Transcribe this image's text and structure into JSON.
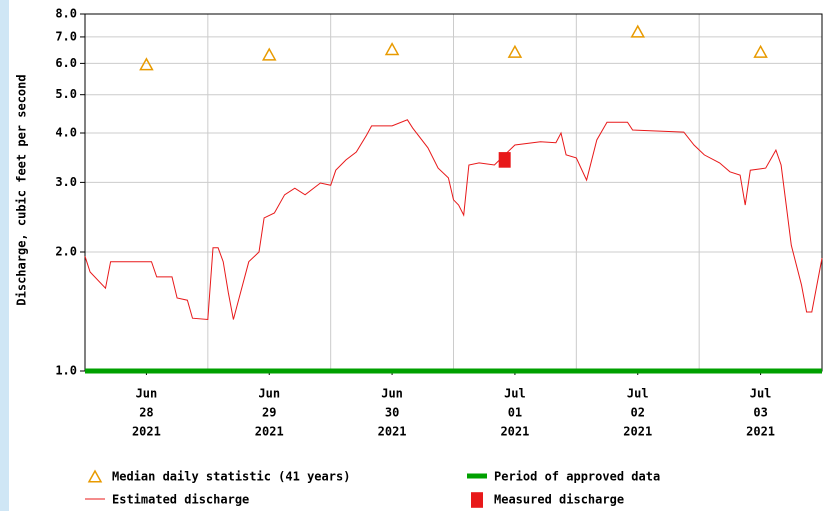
{
  "chart_data": {
    "type": "line",
    "ylabel": "Discharge, cubic feet per second",
    "log_y": true,
    "grid": true,
    "ylim": [
      1,
      8
    ],
    "yticks": [
      {
        "value": 1,
        "label": "1.0"
      },
      {
        "value": 2,
        "label": "2.0"
      },
      {
        "value": 3,
        "label": "3.0"
      },
      {
        "value": 4,
        "label": "4.0"
      },
      {
        "value": 5,
        "label": "5.0"
      },
      {
        "value": 6,
        "label": "6.0"
      },
      {
        "value": 7,
        "label": "7.0"
      },
      {
        "value": 8,
        "label": "8.0"
      }
    ],
    "xlim": [
      "2021-06-28T00:00",
      "2021-07-04T00:00"
    ],
    "xticks": [
      {
        "value": "2021-06-28T12:00",
        "label": [
          "Jun",
          "28",
          "2021"
        ]
      },
      {
        "value": "2021-06-29T12:00",
        "label": [
          "Jun",
          "29",
          "2021"
        ]
      },
      {
        "value": "2021-06-30T12:00",
        "label": [
          "Jun",
          "30",
          "2021"
        ]
      },
      {
        "value": "2021-07-01T12:00",
        "label": [
          "Jul",
          "01",
          "2021"
        ]
      },
      {
        "value": "2021-07-02T12:00",
        "label": [
          "Jul",
          "02",
          "2021"
        ]
      },
      {
        "value": "2021-07-03T12:00",
        "label": [
          "Jul",
          "03",
          "2021"
        ]
      }
    ],
    "xgrid": [
      "2021-06-29T00:00",
      "2021-06-30T00:00",
      "2021-07-01T00:00",
      "2021-07-02T00:00",
      "2021-07-03T00:00"
    ],
    "series": [
      {
        "name": "Median daily statistic (41 years)",
        "color": "#e89a00",
        "marker": "triangle",
        "x": [
          "2021-06-28T12:00",
          "2021-06-29T12:00",
          "2021-06-30T12:00",
          "2021-07-01T12:00",
          "2021-07-02T12:00",
          "2021-07-03T12:00"
        ],
        "values": [
          5.95,
          6.3,
          6.5,
          6.4,
          7.2,
          6.4
        ]
      },
      {
        "name": "Period of approved data",
        "color": "#00a000",
        "marker": "none",
        "line_width": 5,
        "x": [
          "2021-06-28T00:00",
          "2021-07-04T00:00"
        ],
        "values": [
          1,
          1
        ]
      },
      {
        "name": "Estimated discharge",
        "color": "#e8191a",
        "marker": "none",
        "line_width": 1,
        "x": [
          "2021-06-28T00:00",
          "2021-06-28T01:00",
          "2021-06-28T04:00",
          "2021-06-28T05:00",
          "2021-06-28T13:00",
          "2021-06-28T14:00",
          "2021-06-28T17:00",
          "2021-06-28T18:00",
          "2021-06-28T20:00",
          "2021-06-28T21:00",
          "2021-06-29T00:00",
          "2021-06-29T01:00",
          "2021-06-29T02:00",
          "2021-06-29T03:00",
          "2021-06-29T04:00",
          "2021-06-29T05:00",
          "2021-06-29T06:00",
          "2021-06-29T08:00",
          "2021-06-29T10:00",
          "2021-06-29T11:00",
          "2021-06-29T13:00",
          "2021-06-29T15:00",
          "2021-06-29T17:00",
          "2021-06-29T19:00",
          "2021-06-29T22:00",
          "2021-06-30T00:00",
          "2021-06-30T01:00",
          "2021-06-30T03:00",
          "2021-06-30T05:00",
          "2021-06-30T07:00",
          "2021-06-30T08:00",
          "2021-06-30T12:00",
          "2021-06-30T15:00",
          "2021-06-30T16:00",
          "2021-06-30T19:00",
          "2021-06-30T21:00",
          "2021-06-30T23:00",
          "2021-07-01T00:00",
          "2021-07-01T01:00",
          "2021-07-01T02:00",
          "2021-07-01T03:00",
          "2021-07-01T05:00",
          "2021-07-01T08:00",
          "2021-07-01T10:00",
          "2021-07-01T12:00",
          "2021-07-01T17:00",
          "2021-07-01T20:00",
          "2021-07-01T21:00",
          "2021-07-01T22:00",
          "2021-07-02T00:00",
          "2021-07-02T02:00",
          "2021-07-02T04:00",
          "2021-07-02T06:00",
          "2021-07-02T10:00",
          "2021-07-02T11:00",
          "2021-07-02T21:00",
          "2021-07-02T23:00",
          "2021-07-03T01:00",
          "2021-07-03T04:00",
          "2021-07-03T06:00",
          "2021-07-03T08:00",
          "2021-07-03T09:00",
          "2021-07-03T10:00",
          "2021-07-03T13:00",
          "2021-07-03T15:00",
          "2021-07-03T16:00",
          "2021-07-03T17:00",
          "2021-07-03T18:00",
          "2021-07-03T20:00",
          "2021-07-03T21:00",
          "2021-07-03T22:00",
          "2021-07-03T23:00",
          "2021-07-04T00:00"
        ],
        "values": [
          1.95,
          1.78,
          1.62,
          1.89,
          1.89,
          1.73,
          1.73,
          1.53,
          1.51,
          1.36,
          1.35,
          2.05,
          2.05,
          1.89,
          1.58,
          1.35,
          1.51,
          1.89,
          2.0,
          2.44,
          2.51,
          2.79,
          2.9,
          2.79,
          2.99,
          2.95,
          3.22,
          3.42,
          3.58,
          3.95,
          4.17,
          4.17,
          4.32,
          4.12,
          3.67,
          3.26,
          3.08,
          2.71,
          2.63,
          2.48,
          3.32,
          3.36,
          3.32,
          3.52,
          3.73,
          3.8,
          3.78,
          4.0,
          3.52,
          3.46,
          3.04,
          3.84,
          4.26,
          4.26,
          4.07,
          4.02,
          3.73,
          3.52,
          3.36,
          3.19,
          3.13,
          2.63,
          3.22,
          3.26,
          3.62,
          3.32,
          2.63,
          2.08,
          1.65,
          1.41,
          1.41,
          1.65,
          1.93
        ]
      },
      {
        "name": "Measured discharge",
        "color": "#e8191a",
        "marker": "square",
        "x": [
          "2021-07-01T10:00"
        ],
        "values": [
          3.42
        ]
      }
    ]
  }
}
